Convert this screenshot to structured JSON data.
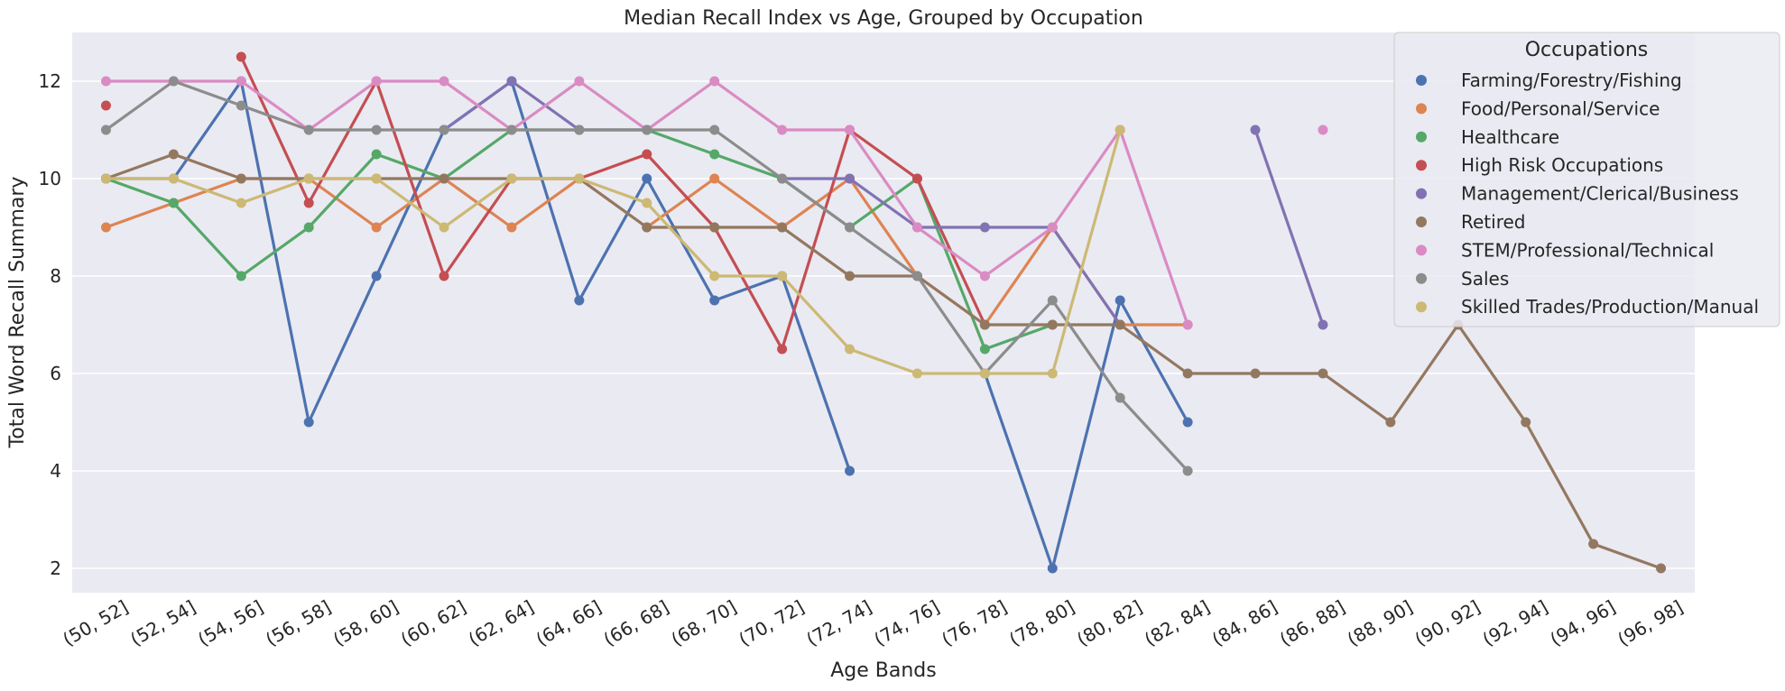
{
  "chart_data": {
    "type": "line",
    "title": "Median Recall Index vs Age, Grouped by Occupation",
    "xlabel": "Age Bands",
    "ylabel": "Total Word Recall Summary",
    "categories": [
      "(50, 52]",
      "(52, 54]",
      "(54, 56]",
      "(56, 58]",
      "(58, 60]",
      "(60, 62]",
      "(62, 64]",
      "(64, 66]",
      "(66, 68]",
      "(68, 70]",
      "(70, 72]",
      "(72, 74]",
      "(74, 76]",
      "(76, 78]",
      "(78, 80]",
      "(80, 82]",
      "(82, 84]",
      "(84, 86]",
      "(86, 88]",
      "(88, 90]",
      "(90, 92]",
      "(92, 94]",
      "(94, 96]",
      "(96, 98]"
    ],
    "ylim": [
      1.5,
      13.0
    ],
    "yticks": [
      2,
      4,
      6,
      8,
      10,
      12
    ],
    "grid": true,
    "legend": {
      "title": "Occupations",
      "placement": "top-right"
    },
    "series": [
      {
        "name": "Farming/Forestry/Fishing",
        "color": "#4c72b0",
        "values": [
          10,
          10,
          12,
          5,
          8,
          11,
          12,
          7.5,
          10,
          7.5,
          8,
          4,
          null,
          6,
          2,
          7.5,
          5,
          null,
          null,
          null,
          null,
          null,
          null,
          null
        ]
      },
      {
        "name": "Food/Personal/Service",
        "color": "#dd8452",
        "values": [
          9,
          9.5,
          10,
          10,
          9,
          10,
          9,
          10,
          9,
          10,
          9,
          10,
          8,
          7,
          9,
          7,
          7,
          null,
          null,
          null,
          null,
          null,
          null,
          null
        ]
      },
      {
        "name": "Healthcare",
        "color": "#55a868",
        "values": [
          10,
          9.5,
          8,
          9,
          10.5,
          10,
          11,
          11,
          11,
          10.5,
          10,
          9,
          10,
          6.5,
          7,
          null,
          null,
          null,
          null,
          null,
          null,
          null,
          null,
          null
        ]
      },
      {
        "name": "High Risk Occupations",
        "color": "#c44e52",
        "values": [
          11.5,
          null,
          12.5,
          9.5,
          12,
          8,
          10,
          10,
          10.5,
          9,
          6.5,
          11,
          10,
          7,
          null,
          null,
          null,
          null,
          null,
          null,
          null,
          null,
          null,
          null
        ]
      },
      {
        "name": "Management/Clerical/Business",
        "color": "#8172b3",
        "values": [
          null,
          null,
          null,
          null,
          null,
          11,
          12,
          11,
          11,
          null,
          10,
          10,
          9,
          9,
          9,
          7,
          null,
          11,
          7,
          null,
          null,
          null,
          null,
          null
        ]
      },
      {
        "name": "Retired",
        "color": "#937860",
        "values": [
          10,
          10.5,
          10,
          10,
          10,
          10,
          10,
          10,
          9,
          9,
          9,
          8,
          8,
          7,
          7,
          7,
          6,
          6,
          6,
          5,
          7,
          5,
          2.5,
          2
        ]
      },
      {
        "name": "STEM/Professional/Technical",
        "color": "#da8bc3",
        "values": [
          12,
          12,
          12,
          11,
          12,
          12,
          11,
          12,
          11,
          12,
          11,
          11,
          9,
          8,
          9,
          11,
          7,
          null,
          11,
          null,
          null,
          null,
          null,
          null
        ]
      },
      {
        "name": "Sales",
        "color": "#8c8c8c",
        "values": [
          11,
          12,
          11.5,
          11,
          11,
          11,
          11,
          11,
          11,
          11,
          10,
          9,
          8,
          6,
          7.5,
          5.5,
          4,
          null,
          null,
          null,
          null,
          null,
          null,
          null
        ]
      },
      {
        "name": "Skilled Trades/Production/Manual",
        "color": "#ccb974",
        "values": [
          10,
          10,
          9.5,
          10,
          10,
          9,
          10,
          10,
          9.5,
          8,
          8,
          6.5,
          6,
          6,
          6,
          11,
          null,
          null,
          null,
          null,
          null,
          null,
          null,
          null
        ]
      }
    ]
  }
}
